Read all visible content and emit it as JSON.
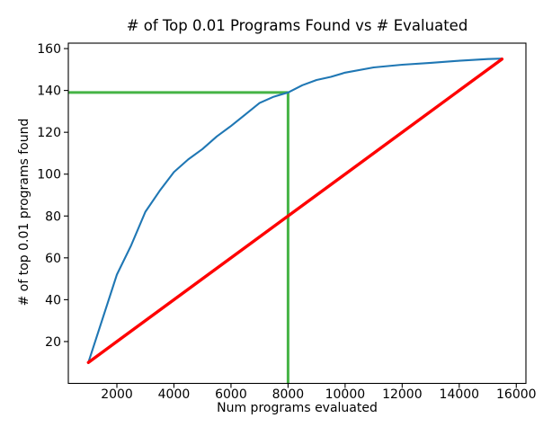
{
  "chart_data": {
    "type": "line",
    "title": "# of Top 0.01 Programs Found vs # Evaluated",
    "xlabel": "Num programs evaluated",
    "ylabel": "# of top 0.01 programs found",
    "xlim": [
      298,
      16338
    ],
    "ylim": [
      0,
      162.6
    ],
    "x_ticks": [
      2000,
      4000,
      6000,
      8000,
      10000,
      12000,
      14000,
      16000
    ],
    "y_ticks": [
      20,
      40,
      60,
      80,
      100,
      120,
      140,
      160
    ],
    "grid": false,
    "legend": "none",
    "series": [
      {
        "name": "programs-found-curve",
        "color": "#1f77b4",
        "width": 2.1,
        "x": [
          1000,
          2000,
          2500,
          3000,
          3500,
          4000,
          4500,
          5000,
          5500,
          6000,
          6500,
          7000,
          7500,
          8000,
          8500,
          9000,
          9500,
          10000,
          11000,
          12000,
          13000,
          14000,
          15000,
          15500
        ],
        "y": [
          10,
          52,
          66,
          82,
          92,
          101,
          107,
          112,
          118,
          123,
          128.5,
          134,
          137,
          139,
          142.5,
          145,
          146.5,
          148.5,
          151,
          152.3,
          153.2,
          154.2,
          155,
          155.2
        ]
      },
      {
        "name": "baseline-diagonal",
        "color": "#fe0000",
        "width": 3.4,
        "x": [
          1000,
          15500
        ],
        "y": [
          10,
          155
        ]
      }
    ],
    "annotations": {
      "hline": {
        "y": 139,
        "x0": 298,
        "x1": 8000,
        "color": "#46b446",
        "width": 3
      },
      "vline": {
        "x": 8000,
        "y0": 0,
        "y1": 139,
        "color": "#46b446",
        "width": 3
      }
    },
    "colors": {
      "spine": "#000000",
      "tick_text": "#000000",
      "blue": "#1f77b4",
      "red": "#fe0000",
      "green": "#46b446",
      "background": "#ffffff"
    }
  }
}
